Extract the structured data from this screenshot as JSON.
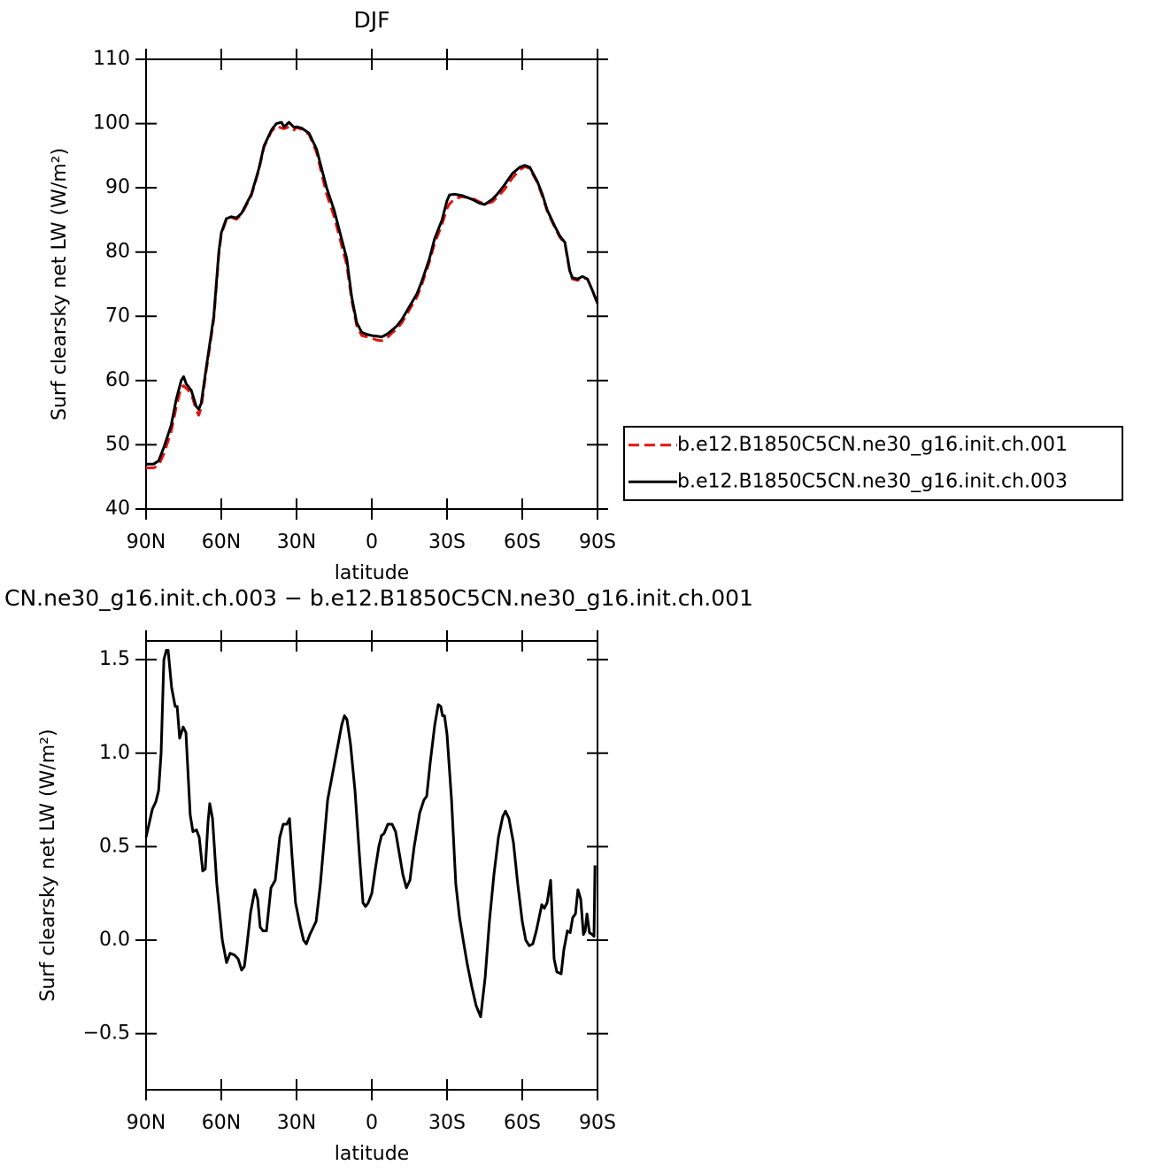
{
  "chart_data": [
    {
      "type": "line",
      "title": "DJF",
      "x_label": "latitude",
      "y_label": "Surf clearsky net LW (W/m²)",
      "xlim": [
        90,
        -90
      ],
      "ylim": [
        40,
        110
      ],
      "xticks": [
        {
          "value": 90,
          "label": "90N"
        },
        {
          "value": 60,
          "label": "60N"
        },
        {
          "value": 30,
          "label": "30N"
        },
        0,
        {
          "value": -30,
          "label": "30S"
        },
        {
          "value": -60,
          "label": "60S"
        },
        {
          "value": -90,
          "label": "90S"
        }
      ],
      "yticks": [
        40,
        50,
        60,
        70,
        80,
        90,
        100,
        110
      ],
      "legend": "right",
      "x": [
        90,
        87,
        85,
        83,
        80,
        78,
        76,
        75,
        74,
        72,
        70,
        69,
        68,
        66,
        63,
        61,
        60,
        58,
        56,
        54,
        52,
        50,
        48,
        45,
        43,
        40,
        38,
        36,
        35,
        33,
        31,
        30,
        28,
        25,
        22,
        20,
        18,
        15,
        12,
        10,
        8,
        6,
        4,
        2,
        0,
        -2,
        -4,
        -6,
        -8,
        -10,
        -12,
        -15,
        -18,
        -20,
        -23,
        -25,
        -28,
        -30,
        -31,
        -33,
        -36,
        -40,
        -43,
        -45,
        -48,
        -50,
        -53,
        -56,
        -59,
        -61,
        -63,
        -66,
        -68,
        -70,
        -73,
        -75,
        -77,
        -79,
        -80,
        -82,
        -84,
        -86,
        -88,
        -90
      ],
      "series": [
        {
          "name": "b.e12.B1850C5CN.ne30_g16.init.ch.001",
          "color": "#e8120c",
          "dash": "dashed",
          "values": [
            46.4,
            46.4,
            46.8,
            48.5,
            52,
            55.8,
            59,
            59.2,
            58.8,
            58,
            55.4,
            54.6,
            55.8,
            61.5,
            69.5,
            79.5,
            82.8,
            85,
            85.4,
            85.1,
            85.8,
            87.3,
            88.8,
            92.8,
            96.3,
            98.8,
            99.6,
            99.3,
            99.2,
            99.5,
            99,
            99.4,
            99.1,
            98.3,
            95.5,
            92.2,
            89,
            85.5,
            81,
            78,
            72.5,
            68.5,
            67,
            66.8,
            66.6,
            66.3,
            66.2,
            66.6,
            67.4,
            68,
            69,
            71,
            73,
            75,
            78.5,
            81.3,
            84.3,
            86.8,
            87.5,
            88.3,
            88.6,
            88.4,
            87.8,
            87.5,
            87.8,
            88.5,
            89.8,
            91.5,
            92.8,
            93.3,
            93,
            90.8,
            88.7,
            86.3,
            83.8,
            82.3,
            81.3,
            76.8,
            75.8,
            75.6,
            76,
            75.8,
            74,
            72
          ]
        },
        {
          "name": "b.e12.B1850C5CN.ne30_g16.init.ch.003",
          "color": "#000000",
          "dash": "solid",
          "values": [
            47,
            47,
            47.5,
            49.5,
            53,
            57,
            60,
            60.6,
            59.5,
            58.5,
            56,
            55.5,
            56.5,
            62,
            70,
            80,
            83,
            85.2,
            85.5,
            85.3,
            86,
            87.5,
            89,
            93,
            96.5,
            99,
            100,
            100.2,
            99.5,
            100.2,
            99.4,
            99.5,
            99.3,
            98.5,
            96,
            93,
            90,
            86.5,
            82,
            79,
            73,
            69,
            67.5,
            67.2,
            67,
            66.9,
            66.8,
            67.2,
            67.8,
            68.5,
            69.5,
            71.5,
            73.5,
            75.5,
            79,
            82,
            85,
            88,
            88.9,
            89,
            88.8,
            88.2,
            87.6,
            87.4,
            88.2,
            89,
            90.5,
            92.2,
            93.2,
            93.5,
            93.2,
            91,
            89,
            86.5,
            84,
            82.5,
            81.5,
            77,
            76,
            75.8,
            76.2,
            75.8,
            74,
            72
          ]
        }
      ]
    },
    {
      "type": "line",
      "title": "CN.ne30_g16.init.ch.003 − b.e12.B1850C5CN.ne30_g16.init.ch.001",
      "x_label": "latitude",
      "y_label": "Surf clearsky net LW (W/m²)",
      "xlim": [
        90,
        -90
      ],
      "ylim": [
        -0.8,
        1.6
      ],
      "xticks": [
        {
          "value": 90,
          "label": "90N"
        },
        {
          "value": 60,
          "label": "60N"
        },
        {
          "value": 30,
          "label": "30N"
        },
        0,
        {
          "value": -30,
          "label": "30S"
        },
        {
          "value": -60,
          "label": "60S"
        },
        {
          "value": -90,
          "label": "90S"
        }
      ],
      "yticks": [
        {
          "value": -0.5,
          "label": "−0.5"
        },
        {
          "value": 0,
          "label": "0.0"
        },
        0.5,
        {
          "value": 1,
          "label": "1.0"
        },
        1.5
      ],
      "x": [
        90,
        87.5,
        86.1,
        85,
        84,
        82.9,
        81.9,
        81.2,
        79.8,
        78.4,
        77.6,
        76.6,
        75.2,
        74.1,
        72.4,
        71.3,
        69.9,
        68.8,
        67.4,
        66.4,
        65.3,
        64.6,
        63.5,
        61.8,
        59.6,
        57.9,
        56.5,
        54.7,
        53.3,
        51.9,
        50.8,
        49.8,
        48.3,
        46.6,
        45.5,
        44.5,
        43.4,
        42,
        40.2,
        38.5,
        36.7,
        35.3,
        33.9,
        32.8,
        31.8,
        30.4,
        28.6,
        27.2,
        26.1,
        24.7,
        22.2,
        20.5,
        17.6,
        15.5,
        13.4,
        12,
        10.9,
        9.9,
        8.5,
        6.7,
        4.9,
        3.5,
        2.5,
        1.4,
        0,
        -1.4,
        -2.8,
        -3.9,
        -4.9,
        -6.4,
        -8.1,
        -9.5,
        -10.9,
        -12.4,
        -13.8,
        -15.2,
        -16.9,
        -19.1,
        -20.8,
        -21.9,
        -23.3,
        -25.1,
        -26.5,
        -27.5,
        -28.2,
        -29,
        -30,
        -31.8,
        -33.5,
        -35,
        -36.7,
        -38.1,
        -39.9,
        -41.6,
        -43.4,
        -45.2,
        -46.9,
        -48.7,
        -50.5,
        -52.2,
        -53.3,
        -54.7,
        -56.5,
        -58.2,
        -60,
        -61.4,
        -62.8,
        -64.2,
        -65.6,
        -66.7,
        -67.8,
        -68.8,
        -69.9,
        -71.3,
        -72.7,
        -73.8,
        -75.5,
        -76.6,
        -78,
        -79.1,
        -80.1,
        -81.2,
        -82.2,
        -83.3,
        -84.4,
        -85.1,
        -85.8,
        -86.8,
        -87.9,
        -88.6,
        -89
      ],
      "series": [
        {
          "color": "#000000",
          "dash": "solid",
          "values": [
            0.55,
            0.7,
            0.74,
            0.8,
            1.0,
            1.5,
            1.55,
            1.55,
            1.35,
            1.25,
            1.25,
            1.08,
            1.14,
            1.11,
            0.67,
            0.58,
            0.59,
            0.55,
            0.37,
            0.38,
            0.63,
            0.73,
            0.65,
            0.3,
            0,
            -0.12,
            -0.07,
            -0.08,
            -0.1,
            -0.16,
            -0.14,
            -0.03,
            0.15,
            0.27,
            0.22,
            0.07,
            0.05,
            0.05,
            0.28,
            0.32,
            0.55,
            0.62,
            0.62,
            0.65,
            0.45,
            0.2,
            0.08,
            0,
            -0.02,
            0.03,
            0.1,
            0.3,
            0.75,
            0.9,
            1.05,
            1.15,
            1.2,
            1.18,
            1.05,
            0.8,
            0.45,
            0.2,
            0.18,
            0.2,
            0.25,
            0.38,
            0.5,
            0.56,
            0.57,
            0.62,
            0.62,
            0.58,
            0.47,
            0.35,
            0.28,
            0.32,
            0.5,
            0.68,
            0.75,
            0.77,
            0.95,
            1.15,
            1.26,
            1.25,
            1.2,
            1.2,
            1.1,
            0.75,
            0.3,
            0.12,
            -0.02,
            -0.13,
            -0.25,
            -0.35,
            -0.41,
            -0.2,
            0.1,
            0.35,
            0.55,
            0.66,
            0.69,
            0.65,
            0.52,
            0.3,
            0.1,
            0,
            -0.03,
            -0.02,
            0.05,
            0.12,
            0.19,
            0.17,
            0.2,
            0.32,
            -0.1,
            -0.17,
            -0.18,
            -0.05,
            0.05,
            0.04,
            0.12,
            0.14,
            0.27,
            0.22,
            0.03,
            0.05,
            0.14,
            0.04,
            0.03,
            0.02,
            0.4
          ]
        }
      ]
    }
  ]
}
